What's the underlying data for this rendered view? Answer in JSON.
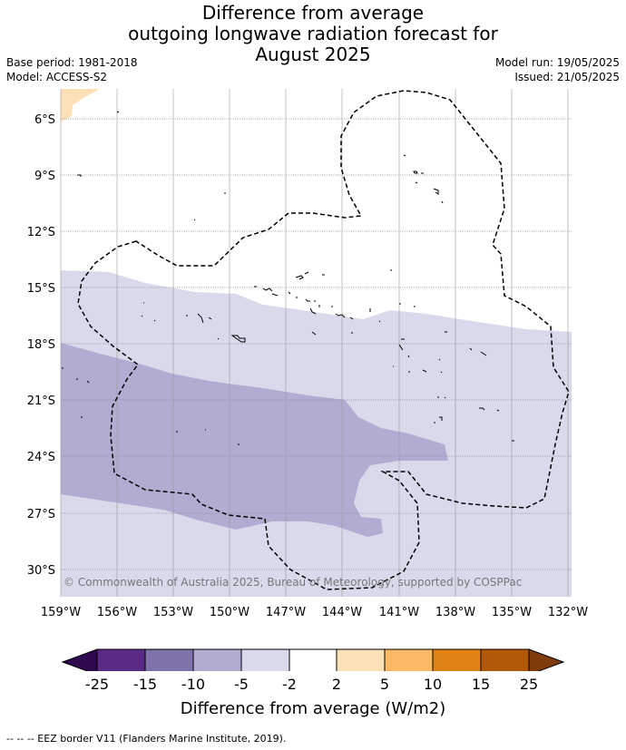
{
  "header": {
    "title_lines": [
      "Difference from average",
      "outgoing longwave radiation forecast for",
      "August 2025"
    ],
    "base_period": "Base period: 1981-2018",
    "model": "Model: ACCESS-S2",
    "model_run": "Model run: 19/05/2025",
    "issued": "Issued: 21/05/2025"
  },
  "map": {
    "lat_labels": [
      "6°S",
      "9°S",
      "12°S",
      "15°S",
      "18°S",
      "21°S",
      "24°S",
      "27°S",
      "30°S"
    ],
    "lon_labels": [
      "159°W",
      "156°W",
      "153°W",
      "150°W",
      "147°W",
      "144°W",
      "141°W",
      "138°W",
      "135°W",
      "132°W"
    ],
    "copyright": "© Commonwealth of Australia 2025, Bureau of Meteorology, supported by COSPPac"
  },
  "colorbar": {
    "title": "Difference from average (W/m2)",
    "ticks": [
      "-25",
      "-15",
      "-10",
      "-5",
      "-2",
      "2",
      "5",
      "10",
      "15",
      "25"
    ],
    "colors": {
      "below": "#2d0a4e",
      "c1": "#5b2a86",
      "c2": "#8073ac",
      "c3": "#b2abd2",
      "c4": "#d8daeb",
      "c5": "#ffffff",
      "c6": "#fee0b6",
      "c7": "#fdb863",
      "c8": "#e08214",
      "c9": "#b35806",
      "above": "#7f3b08"
    }
  },
  "footnote": "-- -- -- EEZ border V11 (Flanders Marine Institute, 2019)."
}
